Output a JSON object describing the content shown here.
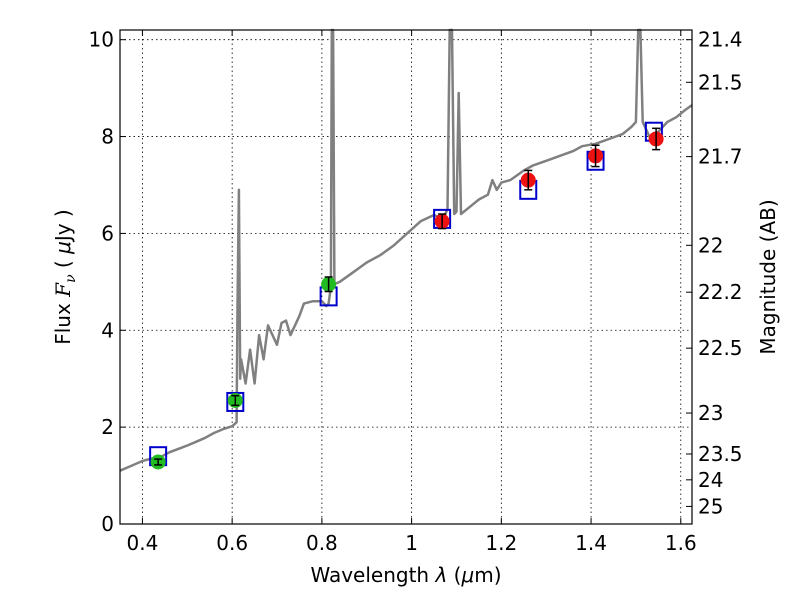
{
  "chart_data": {
    "type": "scatter",
    "xlabel": "Wavelength  λ (μm)",
    "ylabel": "Flux  Fν  ( μJy )",
    "ylabel_parts": {
      "prefix": "Flux  ",
      "symbol": "F",
      "subscript": "ν",
      "mid": "  ( ",
      "mu": "μ",
      "unit": "Jy )"
    },
    "xlabel_parts": {
      "text": "Wavelength  ",
      "symbol": "λ",
      "open": " (",
      "mu": "μ",
      "unit": "m)"
    },
    "y2label": "Magnitude (AB)",
    "xlim": [
      0.35,
      1.625
    ],
    "ylim": [
      0,
      10.2
    ],
    "xticks": [
      0.4,
      0.6,
      0.8,
      1.0,
      1.2,
      1.4,
      1.6
    ],
    "xtick_labels": [
      "0.4",
      "0.6",
      "0.8",
      "1",
      "1.2",
      "1.4",
      "1.6"
    ],
    "yticks": [
      0,
      2,
      4,
      6,
      8,
      10
    ],
    "ytick_labels": [
      "0",
      "2",
      "4",
      "6",
      "8",
      "10"
    ],
    "mag_ticks": [
      21.4,
      21.5,
      21.7,
      22,
      22.2,
      22.5,
      23,
      23.5,
      24,
      25
    ],
    "mag_tick_labels": [
      "21.4",
      "21.5",
      "21.7",
      "22",
      "22.2",
      "22.5",
      "23",
      "23.5",
      "24",
      "25"
    ],
    "grid": true,
    "colors": {
      "spectrum": "#808080",
      "model_box": "#0000cc",
      "green_point": "#22bb22",
      "red_point": "#ee1111",
      "error_bar": "#000000"
    },
    "spectrum": [
      [
        0.35,
        1.1
      ],
      [
        0.38,
        1.22
      ],
      [
        0.4,
        1.3
      ],
      [
        0.42,
        1.35
      ],
      [
        0.44,
        1.38
      ],
      [
        0.46,
        1.48
      ],
      [
        0.48,
        1.55
      ],
      [
        0.5,
        1.62
      ],
      [
        0.52,
        1.7
      ],
      [
        0.54,
        1.78
      ],
      [
        0.56,
        1.88
      ],
      [
        0.58,
        1.96
      ],
      [
        0.6,
        2.02
      ],
      [
        0.61,
        2.1
      ],
      [
        0.612,
        4.5
      ],
      [
        0.615,
        6.9
      ],
      [
        0.618,
        3.0
      ],
      [
        0.62,
        3.4
      ],
      [
        0.63,
        2.9
      ],
      [
        0.64,
        3.6
      ],
      [
        0.65,
        2.9
      ],
      [
        0.66,
        3.9
      ],
      [
        0.67,
        3.4
      ],
      [
        0.68,
        4.1
      ],
      [
        0.7,
        3.7
      ],
      [
        0.71,
        4.15
      ],
      [
        0.72,
        4.2
      ],
      [
        0.73,
        3.9
      ],
      [
        0.75,
        4.3
      ],
      [
        0.76,
        4.55
      ],
      [
        0.78,
        4.6
      ],
      [
        0.8,
        4.6
      ],
      [
        0.81,
        4.5
      ],
      [
        0.815,
        4.55
      ],
      [
        0.82,
        4.9
      ],
      [
        0.822,
        10.2
      ],
      [
        0.825,
        10.2
      ],
      [
        0.828,
        4.95
      ],
      [
        0.84,
        5.0
      ],
      [
        0.87,
        5.2
      ],
      [
        0.9,
        5.4
      ],
      [
        0.93,
        5.55
      ],
      [
        0.96,
        5.75
      ],
      [
        0.99,
        6.0
      ],
      [
        1.02,
        6.25
      ],
      [
        1.05,
        6.38
      ],
      [
        1.07,
        6.3
      ],
      [
        1.08,
        6.5
      ],
      [
        1.085,
        10.2
      ],
      [
        1.09,
        10.2
      ],
      [
        1.095,
        6.4
      ],
      [
        1.1,
        6.45
      ],
      [
        1.105,
        8.9
      ],
      [
        1.11,
        6.4
      ],
      [
        1.13,
        6.55
      ],
      [
        1.15,
        6.7
      ],
      [
        1.17,
        6.8
      ],
      [
        1.18,
        7.1
      ],
      [
        1.19,
        6.9
      ],
      [
        1.2,
        7.05
      ],
      [
        1.22,
        7.1
      ],
      [
        1.25,
        7.3
      ],
      [
        1.27,
        7.4
      ],
      [
        1.3,
        7.5
      ],
      [
        1.33,
        7.6
      ],
      [
        1.36,
        7.7
      ],
      [
        1.38,
        7.8
      ],
      [
        1.41,
        7.85
      ],
      [
        1.44,
        7.95
      ],
      [
        1.47,
        8.05
      ],
      [
        1.49,
        8.2
      ],
      [
        1.5,
        8.3
      ],
      [
        1.505,
        10.2
      ],
      [
        1.51,
        10.2
      ],
      [
        1.515,
        8.3
      ],
      [
        1.53,
        8.0
      ],
      [
        1.55,
        8.1
      ],
      [
        1.57,
        8.3
      ],
      [
        1.59,
        8.4
      ],
      [
        1.61,
        8.55
      ],
      [
        1.625,
        8.65
      ]
    ],
    "model_boxes": [
      {
        "x": 0.435,
        "y": 1.4
      },
      {
        "x": 0.607,
        "y": 2.52
      },
      {
        "x": 0.815,
        "y": 4.7
      },
      {
        "x": 1.068,
        "y": 6.3
      },
      {
        "x": 1.26,
        "y": 6.9
      },
      {
        "x": 1.41,
        "y": 7.5
      },
      {
        "x": 1.54,
        "y": 8.1
      }
    ],
    "points": [
      {
        "x": 0.435,
        "y": 1.28,
        "err": 0.06,
        "color": "green"
      },
      {
        "x": 0.607,
        "y": 2.55,
        "err": 0.1,
        "color": "green"
      },
      {
        "x": 0.815,
        "y": 4.95,
        "err": 0.15,
        "color": "green"
      },
      {
        "x": 1.068,
        "y": 6.25,
        "err": 0.15,
        "color": "red"
      },
      {
        "x": 1.26,
        "y": 7.1,
        "err": 0.2,
        "color": "red"
      },
      {
        "x": 1.41,
        "y": 7.6,
        "err": 0.22,
        "color": "red"
      },
      {
        "x": 1.545,
        "y": 7.95,
        "err": 0.22,
        "color": "red"
      }
    ]
  }
}
